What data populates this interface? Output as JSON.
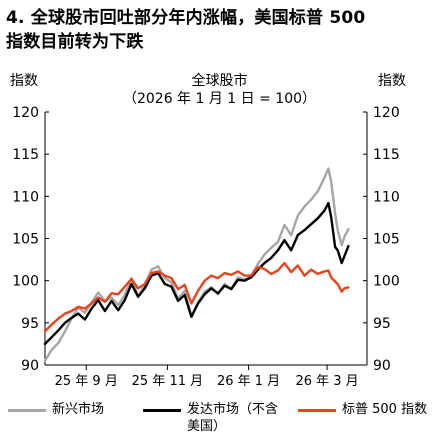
{
  "figure": {
    "title_line1": "4. 全球股市回吐部分年内涨幅，美国标普 500",
    "title_line2": "指数目前转为下跌"
  },
  "chart_data": {
    "type": "line",
    "title": "全球股市",
    "subtitle": "（2026 年 1 月 1 日 = 100）",
    "ylabel_left": "指数",
    "ylabel_right": "指数",
    "ylim": [
      90,
      120
    ],
    "yticks": [
      90,
      95,
      100,
      105,
      110,
      115,
      120
    ],
    "x_range": [
      "2025-08-01",
      "2026-03-31"
    ],
    "xticks": [
      {
        "date": "2025-09-01",
        "label": "25 年 9 月"
      },
      {
        "date": "2025-11-01",
        "label": "25 年 11 月"
      },
      {
        "date": "2026-01-01",
        "label": "26 年 1 月"
      },
      {
        "date": "2026-03-01",
        "label": "26 年 3 月"
      }
    ],
    "grid": false,
    "legend_position": "bottom",
    "series": [
      {
        "name": "新兴市场",
        "color": "#a6a6a6",
        "points": [
          [
            "2025-08-01",
            90.5
          ],
          [
            "2025-08-06",
            91.8
          ],
          [
            "2025-08-11",
            92.6
          ],
          [
            "2025-08-16",
            94.0
          ],
          [
            "2025-08-21",
            95.5
          ],
          [
            "2025-08-26",
            96.8
          ],
          [
            "2025-08-31",
            96.2
          ],
          [
            "2025-09-05",
            97.4
          ],
          [
            "2025-09-10",
            98.6
          ],
          [
            "2025-09-15",
            97.6
          ],
          [
            "2025-09-20",
            98.0
          ],
          [
            "2025-09-25",
            97.1
          ],
          [
            "2025-09-30",
            98.3
          ],
          [
            "2025-10-05",
            100.3
          ],
          [
            "2025-10-10",
            98.1
          ],
          [
            "2025-10-15",
            99.5
          ],
          [
            "2025-10-20",
            101.3
          ],
          [
            "2025-10-25",
            101.7
          ],
          [
            "2025-10-30",
            100.3
          ],
          [
            "2025-11-04",
            99.8
          ],
          [
            "2025-11-09",
            97.9
          ],
          [
            "2025-11-14",
            98.8
          ],
          [
            "2025-11-19",
            95.8
          ],
          [
            "2025-11-24",
            97.4
          ],
          [
            "2025-11-29",
            98.7
          ],
          [
            "2025-12-04",
            99.2
          ],
          [
            "2025-12-09",
            98.4
          ],
          [
            "2025-12-14",
            99.6
          ],
          [
            "2025-12-19",
            99.0
          ],
          [
            "2025-12-24",
            100.4
          ],
          [
            "2025-12-29",
            100.1
          ],
          [
            "2026-01-03",
            100.6
          ],
          [
            "2026-01-08",
            102.0
          ],
          [
            "2026-01-13",
            103.1
          ],
          [
            "2026-01-18",
            103.9
          ],
          [
            "2026-01-23",
            104.6
          ],
          [
            "2026-01-28",
            106.6
          ],
          [
            "2026-02-02",
            105.4
          ],
          [
            "2026-02-07",
            107.7
          ],
          [
            "2026-02-12",
            108.8
          ],
          [
            "2026-02-17",
            109.6
          ],
          [
            "2026-02-22",
            110.6
          ],
          [
            "2026-02-27",
            112.2
          ],
          [
            "2026-03-02",
            113.3
          ],
          [
            "2026-03-04",
            111.8
          ],
          [
            "2026-03-07",
            108.0
          ],
          [
            "2026-03-09",
            106.0
          ],
          [
            "2026-03-12",
            104.2
          ],
          [
            "2026-03-14",
            105.2
          ],
          [
            "2026-03-17",
            106.1
          ]
        ]
      },
      {
        "name": "发达市场（不含美国）",
        "color": "#000000",
        "points": [
          [
            "2025-08-01",
            92.5
          ],
          [
            "2025-08-06",
            93.3
          ],
          [
            "2025-08-11",
            94.1
          ],
          [
            "2025-08-16",
            95.0
          ],
          [
            "2025-08-21",
            95.6
          ],
          [
            "2025-08-26",
            96.1
          ],
          [
            "2025-08-31",
            95.4
          ],
          [
            "2025-09-05",
            96.7
          ],
          [
            "2025-09-10",
            97.7
          ],
          [
            "2025-09-15",
            96.4
          ],
          [
            "2025-09-20",
            97.6
          ],
          [
            "2025-09-25",
            96.5
          ],
          [
            "2025-09-30",
            97.7
          ],
          [
            "2025-10-05",
            99.6
          ],
          [
            "2025-10-10",
            98.1
          ],
          [
            "2025-10-15",
            99.1
          ],
          [
            "2025-10-20",
            100.6
          ],
          [
            "2025-10-25",
            100.9
          ],
          [
            "2025-10-30",
            99.6
          ],
          [
            "2025-11-04",
            99.3
          ],
          [
            "2025-11-09",
            97.6
          ],
          [
            "2025-11-14",
            98.3
          ],
          [
            "2025-11-19",
            95.7
          ],
          [
            "2025-11-24",
            97.3
          ],
          [
            "2025-11-29",
            98.4
          ],
          [
            "2025-12-04",
            99.1
          ],
          [
            "2025-12-09",
            98.5
          ],
          [
            "2025-12-14",
            99.4
          ],
          [
            "2025-12-19",
            99.0
          ],
          [
            "2025-12-24",
            100.1
          ],
          [
            "2025-12-29",
            100.0
          ],
          [
            "2026-01-03",
            100.4
          ],
          [
            "2026-01-08",
            101.3
          ],
          [
            "2026-01-13",
            102.1
          ],
          [
            "2026-01-18",
            102.7
          ],
          [
            "2026-01-23",
            103.6
          ],
          [
            "2026-01-28",
            104.8
          ],
          [
            "2026-02-02",
            103.6
          ],
          [
            "2026-02-07",
            105.4
          ],
          [
            "2026-02-12",
            106.0
          ],
          [
            "2026-02-17",
            106.7
          ],
          [
            "2026-02-22",
            107.4
          ],
          [
            "2026-02-27",
            108.3
          ],
          [
            "2026-03-02",
            109.2
          ],
          [
            "2026-03-04",
            107.6
          ],
          [
            "2026-03-07",
            104.0
          ],
          [
            "2026-03-09",
            103.6
          ],
          [
            "2026-03-12",
            102.1
          ],
          [
            "2026-03-14",
            102.9
          ],
          [
            "2026-03-17",
            104.1
          ]
        ]
      },
      {
        "name": "标普 500 指数",
        "color": "#e8431c",
        "points": [
          [
            "2025-08-01",
            94.0
          ],
          [
            "2025-08-06",
            94.8
          ],
          [
            "2025-08-11",
            95.5
          ],
          [
            "2025-08-16",
            96.1
          ],
          [
            "2025-08-21",
            96.4
          ],
          [
            "2025-08-26",
            96.9
          ],
          [
            "2025-08-31",
            96.7
          ],
          [
            "2025-09-05",
            97.3
          ],
          [
            "2025-09-10",
            98.0
          ],
          [
            "2025-09-15",
            97.5
          ],
          [
            "2025-09-20",
            98.5
          ],
          [
            "2025-09-25",
            98.4
          ],
          [
            "2025-09-30",
            99.3
          ],
          [
            "2025-10-05",
            100.2
          ],
          [
            "2025-10-10",
            99.1
          ],
          [
            "2025-10-15",
            99.6
          ],
          [
            "2025-10-20",
            100.9
          ],
          [
            "2025-10-25",
            101.1
          ],
          [
            "2025-10-30",
            100.6
          ],
          [
            "2025-11-04",
            100.3
          ],
          [
            "2025-11-09",
            99.0
          ],
          [
            "2025-11-14",
            99.5
          ],
          [
            "2025-11-19",
            97.3
          ],
          [
            "2025-11-24",
            98.8
          ],
          [
            "2025-11-29",
            100.0
          ],
          [
            "2025-12-04",
            100.6
          ],
          [
            "2025-12-09",
            100.3
          ],
          [
            "2025-12-14",
            100.9
          ],
          [
            "2025-12-19",
            100.7
          ],
          [
            "2025-12-24",
            101.1
          ],
          [
            "2025-12-29",
            100.6
          ],
          [
            "2026-01-03",
            100.6
          ],
          [
            "2026-01-08",
            101.6
          ],
          [
            "2026-01-13",
            101.4
          ],
          [
            "2026-01-18",
            100.8
          ],
          [
            "2026-01-23",
            101.2
          ],
          [
            "2026-01-28",
            102.1
          ],
          [
            "2026-02-02",
            101.0
          ],
          [
            "2026-02-07",
            101.8
          ],
          [
            "2026-02-12",
            100.6
          ],
          [
            "2026-02-17",
            101.3
          ],
          [
            "2026-02-22",
            100.8
          ],
          [
            "2026-02-27",
            101.1
          ],
          [
            "2026-03-02",
            101.2
          ],
          [
            "2026-03-04",
            100.4
          ],
          [
            "2026-03-07",
            99.9
          ],
          [
            "2026-03-09",
            99.6
          ],
          [
            "2026-03-12",
            98.7
          ],
          [
            "2026-03-14",
            99.1
          ],
          [
            "2026-03-17",
            99.2
          ]
        ]
      }
    ],
    "legend": [
      {
        "label": "新兴市场",
        "color": "#a6a6a6"
      },
      {
        "label_line1": "发达市场（不含",
        "label_line2": "美国）",
        "color": "#000000"
      },
      {
        "label": "标普 500 指数",
        "color": "#e8431c"
      }
    ]
  }
}
